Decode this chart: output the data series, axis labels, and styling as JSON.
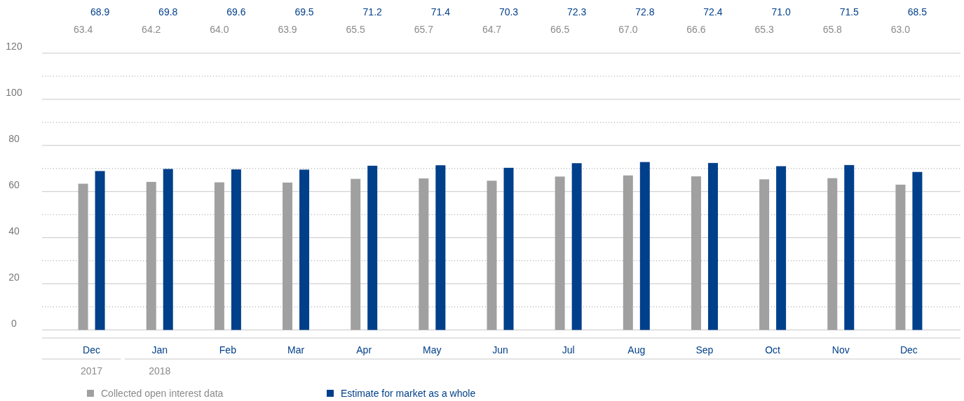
{
  "chart_data": {
    "type": "bar",
    "categories": [
      "Dec",
      "Jan",
      "Feb",
      "Mar",
      "Apr",
      "May",
      "Jun",
      "Jul",
      "Aug",
      "Sep",
      "Oct",
      "Nov",
      "Dec"
    ],
    "series": [
      {
        "name": "Collected open interest data",
        "color": "#a0a0a0",
        "values": [
          63.4,
          64.2,
          64.0,
          63.9,
          65.5,
          65.7,
          64.7,
          66.5,
          67.0,
          66.6,
          65.3,
          65.8,
          63.0
        ],
        "value_labels": [
          "63.4",
          "64.2",
          "64.0",
          "63.9",
          "65.5",
          "65.7",
          "64.7",
          "66.5",
          "67.0",
          "66.6",
          "65.3",
          "65.8",
          "63.0"
        ]
      },
      {
        "name": "Estimate for market as a whole",
        "color": "#003f8a",
        "values": [
          68.9,
          69.8,
          69.6,
          69.5,
          71.2,
          71.4,
          70.3,
          72.3,
          72.8,
          72.4,
          71.0,
          71.5,
          68.5
        ],
        "value_labels": [
          "68.9",
          "69.8",
          "69.6",
          "69.5",
          "71.2",
          "71.4",
          "70.3",
          "72.3",
          "72.8",
          "72.4",
          "71.0",
          "71.5",
          "68.5"
        ]
      }
    ],
    "ylim": [
      -3.5,
      120
    ],
    "yticks": [
      0,
      {
        "value": 10,
        "label": null
      },
      20,
      {
        "value": 30,
        "label": null
      },
      40,
      {
        "value": 50,
        "label": null
      },
      60,
      {
        "value": 70,
        "label": null
      },
      80,
      {
        "value": 90,
        "label": null
      },
      100,
      {
        "value": 110,
        "label": null
      },
      120
    ],
    "grid": "y",
    "legend": "bottom",
    "annotations": [
      "2017",
      "2018"
    ]
  }
}
